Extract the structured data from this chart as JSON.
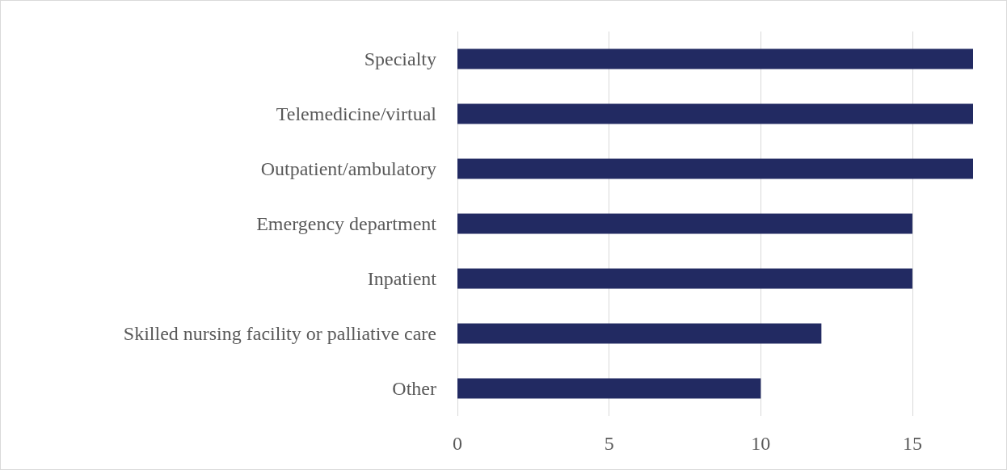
{
  "chart_data": {
    "type": "bar",
    "orientation": "horizontal",
    "categories": [
      "Specialty",
      "Telemedicine/virtual",
      "Outpatient/ambulatory",
      "Emergency department",
      "Inpatient",
      "Skilled nursing facility or palliative care",
      "Other"
    ],
    "values": [
      17,
      17,
      17,
      15,
      15,
      12,
      10
    ],
    "color": "#222a62",
    "xlim": [
      0,
      17
    ],
    "xticks": [
      0,
      5,
      10,
      15
    ],
    "grid": "x"
  }
}
